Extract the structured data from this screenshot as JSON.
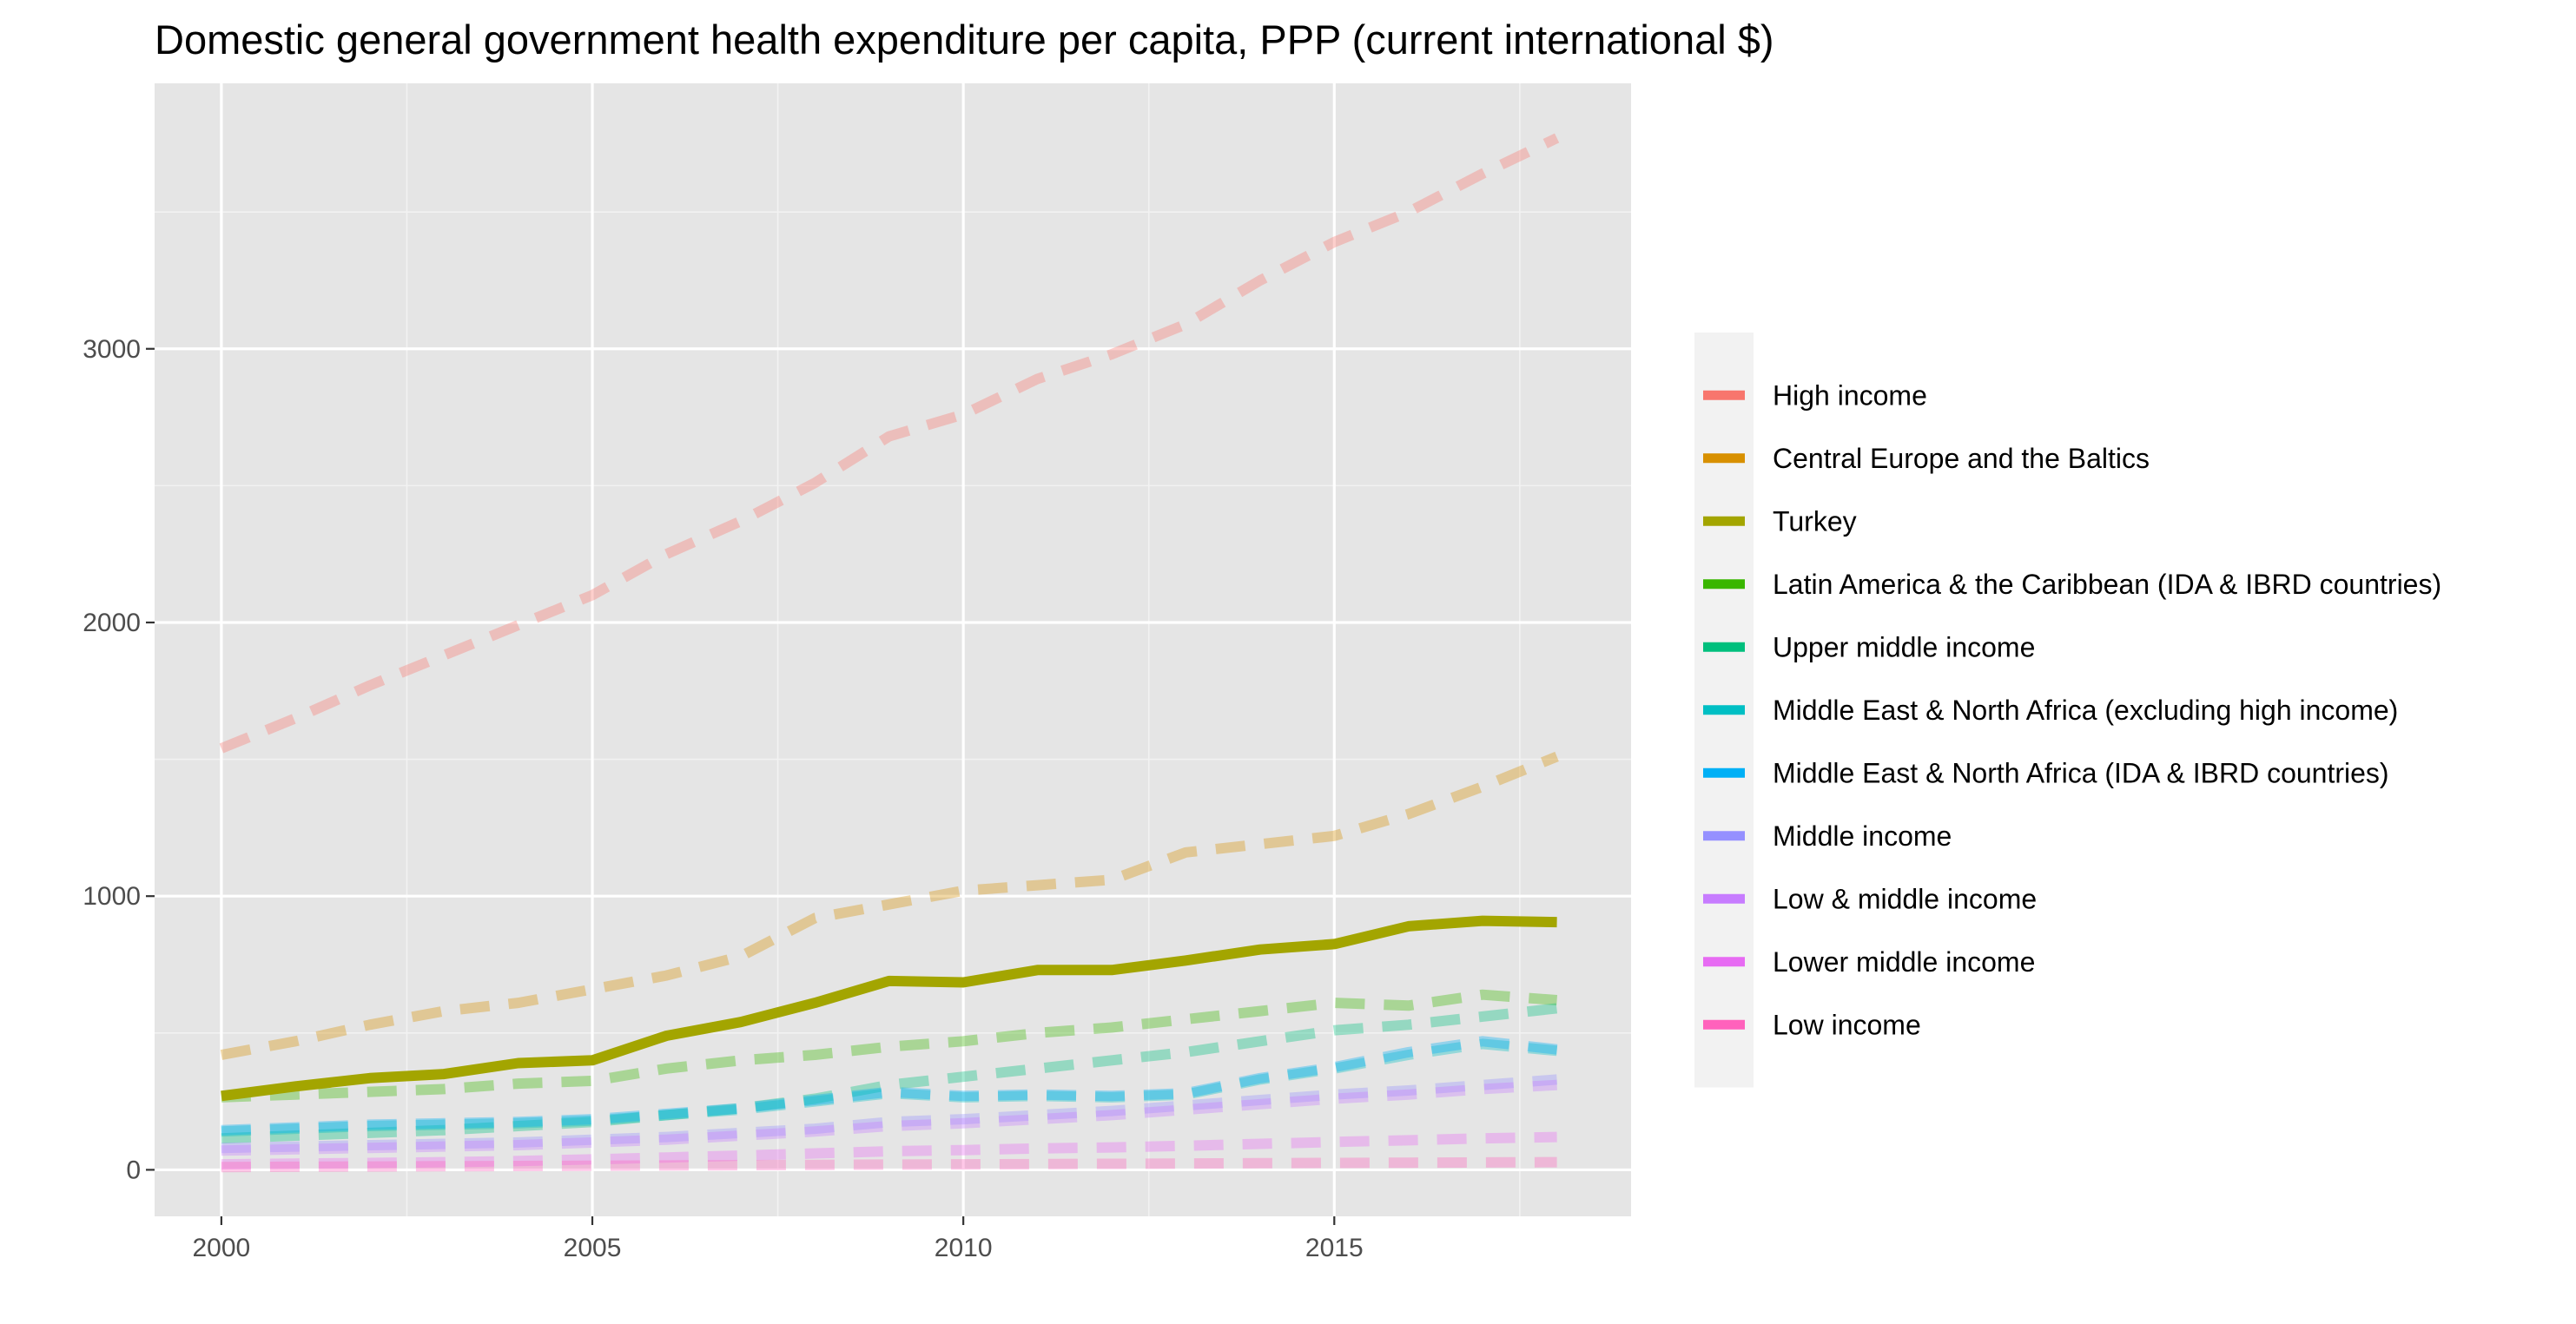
{
  "chart_data": {
    "type": "line",
    "title": "Domestic general government health expenditure per capita, PPP (current international $)",
    "xlabel": "",
    "ylabel": "",
    "x": [
      2000,
      2001,
      2002,
      2003,
      2004,
      2005,
      2006,
      2007,
      2008,
      2009,
      2010,
      2011,
      2012,
      2013,
      2014,
      2015,
      2016,
      2017,
      2018
    ],
    "xlim": [
      1999.1,
      2019.0
    ],
    "ylim": [
      -170,
      3970
    ],
    "x_ticks": [
      2000,
      2005,
      2010,
      2015
    ],
    "y_ticks": [
      0,
      1000,
      2000,
      3000
    ],
    "x_tick_labels": [
      "2000",
      "2005",
      "2010",
      "2015"
    ],
    "y_tick_labels": [
      "0",
      "1000",
      "2000",
      "3000"
    ],
    "grid": true,
    "legend_position": "right",
    "background_color": "#e5e5e5",
    "series": [
      {
        "name": "High income",
        "color": "#f8766d",
        "style": "dashed",
        "values": [
          1540,
          1650,
          1770,
          1880,
          1990,
          2100,
          2250,
          2370,
          2510,
          2680,
          2760,
          2890,
          2980,
          3090,
          3250,
          3390,
          3500,
          3640,
          3770
        ]
      },
      {
        "name": "Central Europe and the Baltics",
        "color": "#d89000",
        "style": "dashed",
        "values": [
          420,
          470,
          530,
          580,
          610,
          660,
          710,
          780,
          920,
          970,
          1020,
          1040,
          1060,
          1160,
          1190,
          1220,
          1300,
          1400,
          1510
        ]
      },
      {
        "name": "Turkey",
        "color": "#a3a500",
        "style": "solid",
        "values": [
          270,
          305,
          335,
          350,
          390,
          400,
          490,
          540,
          610,
          690,
          685,
          730,
          730,
          765,
          805,
          825,
          890,
          910,
          905
        ]
      },
      {
        "name": "Latin America & the Caribbean (IDA & IBRD countries)",
        "color": "#39b600",
        "style": "dashed",
        "values": [
          265,
          275,
          285,
          295,
          315,
          325,
          370,
          400,
          420,
          450,
          470,
          500,
          520,
          550,
          580,
          610,
          600,
          640,
          620
        ]
      },
      {
        "name": "Upper middle income",
        "color": "#00bf7d",
        "style": "dashed",
        "values": [
          115,
          125,
          135,
          145,
          160,
          175,
          200,
          225,
          260,
          310,
          340,
          370,
          400,
          430,
          470,
          510,
          530,
          560,
          590
        ]
      },
      {
        "name": "Middle East & North Africa (excluding high income)",
        "color": "#00bfc4",
        "style": "dashed",
        "values": [
          140,
          150,
          160,
          165,
          170,
          180,
          200,
          220,
          250,
          280,
          265,
          270,
          265,
          275,
          330,
          370,
          420,
          460,
          435
        ]
      },
      {
        "name": "Middle East & North Africa (IDA & IBRD countries)",
        "color": "#00b0f6",
        "style": "dashed",
        "values": [
          145,
          155,
          165,
          170,
          175,
          185,
          205,
          225,
          255,
          285,
          270,
          275,
          270,
          280,
          335,
          375,
          430,
          470,
          440
        ]
      },
      {
        "name": "Middle income",
        "color": "#9590ff",
        "style": "dashed",
        "values": [
          80,
          85,
          90,
          95,
          100,
          110,
          120,
          135,
          150,
          175,
          185,
          200,
          215,
          235,
          255,
          275,
          290,
          310,
          330
        ]
      },
      {
        "name": "Low & middle income",
        "color": "#c77cff",
        "style": "dashed",
        "values": [
          70,
          75,
          80,
          85,
          90,
          100,
          110,
          125,
          140,
          160,
          170,
          185,
          200,
          220,
          240,
          260,
          275,
          295,
          310
        ]
      },
      {
        "name": "Lower middle income",
        "color": "#e76bf3",
        "style": "dashed",
        "values": [
          20,
          23,
          25,
          28,
          32,
          38,
          45,
          52,
          60,
          68,
          72,
          78,
          82,
          88,
          95,
          102,
          108,
          115,
          120
        ]
      },
      {
        "name": "Low income",
        "color": "#ff62bc",
        "style": "dashed",
        "values": [
          10,
          11,
          12,
          13,
          14,
          15,
          16,
          17,
          18,
          19,
          20,
          21,
          22,
          23,
          24,
          25,
          26,
          27,
          28
        ]
      }
    ]
  }
}
